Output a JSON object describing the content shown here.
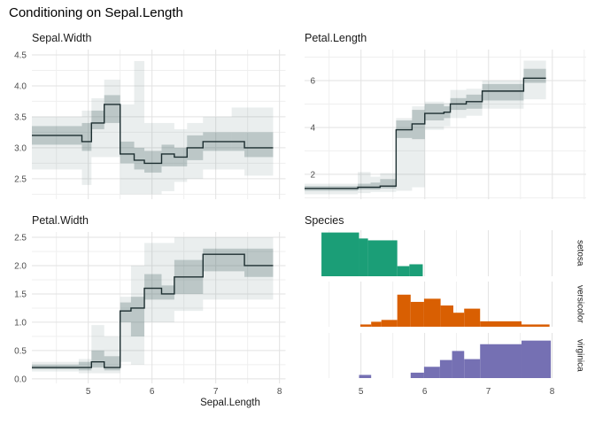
{
  "title": "Conditioning on Sepal.Length",
  "xlabel": "Sepal.Length",
  "colors": {
    "setosa": "#1B9E77",
    "versicolor": "#D95F02",
    "virginica": "#7570B3",
    "step_line": "#1C2E30",
    "band_inner": "rgba(70,100,100,0.28)",
    "band_outer": "rgba(125,148,148,0.16)",
    "grid_major": "#e2e2e2",
    "grid_minor": "#efefef",
    "tick_text": "#4d4d4d"
  },
  "chart_data": [
    {
      "type": "step-band",
      "title": "Sepal.Width",
      "xlim": [
        4.115,
        8.095
      ],
      "ylim": [
        2.17,
        4.585
      ],
      "xticks": [
        5,
        6,
        7,
        8
      ],
      "yticks": [
        2.5,
        3.0,
        3.5,
        4.0,
        4.5
      ],
      "ytick_labels": [
        "2.5",
        "3.0",
        "3.5",
        "4.0",
        "4.5"
      ],
      "segments": [
        {
          "x0": 4.115,
          "x1": 4.9,
          "y": 3.2,
          "inner": [
            3.05,
            3.35
          ],
          "outer": [
            2.65,
            3.5
          ]
        },
        {
          "x0": 4.9,
          "x1": 5.05,
          "y": 3.1,
          "inner": [
            2.95,
            3.4
          ],
          "outer": [
            2.4,
            3.6
          ]
        },
        {
          "x0": 5.05,
          "x1": 5.25,
          "y": 3.4,
          "inner": [
            3.3,
            3.6
          ],
          "outer": [
            2.85,
            3.8
          ]
        },
        {
          "x0": 5.25,
          "x1": 5.5,
          "y": 3.7,
          "inner": [
            3.4,
            3.85
          ],
          "outer": [
            2.85,
            4.1
          ]
        },
        {
          "x0": 5.5,
          "x1": 5.72,
          "y": 2.9,
          "inner": [
            2.75,
            3.1
          ],
          "outer": [
            2.25,
            3.7
          ]
        },
        {
          "x0": 5.72,
          "x1": 5.88,
          "y": 2.8,
          "inner": [
            2.65,
            3.0
          ],
          "outer": [
            2.25,
            4.4
          ]
        },
        {
          "x0": 5.88,
          "x1": 6.15,
          "y": 2.75,
          "inner": [
            2.6,
            2.95
          ],
          "outer": [
            2.25,
            3.4
          ]
        },
        {
          "x0": 6.15,
          "x1": 6.35,
          "y": 2.9,
          "inner": [
            2.7,
            3.05
          ],
          "outer": [
            2.3,
            3.4
          ]
        },
        {
          "x0": 6.35,
          "x1": 6.55,
          "y": 2.85,
          "inner": [
            2.7,
            3.0
          ],
          "outer": [
            2.45,
            3.3
          ]
        },
        {
          "x0": 6.55,
          "x1": 6.8,
          "y": 3.0,
          "inner": [
            2.8,
            3.2
          ],
          "outer": [
            2.5,
            3.4
          ]
        },
        {
          "x0": 6.8,
          "x1": 7.25,
          "y": 3.1,
          "inner": [
            2.95,
            3.25
          ],
          "outer": [
            2.65,
            3.5
          ]
        },
        {
          "x0": 7.25,
          "x1": 7.45,
          "y": 3.1,
          "inner": [
            2.95,
            3.25
          ],
          "outer": [
            2.65,
            3.65
          ]
        },
        {
          "x0": 7.45,
          "x1": 7.9,
          "y": 3.0,
          "inner": [
            2.85,
            3.25
          ],
          "outer": [
            2.55,
            3.65
          ]
        }
      ]
    },
    {
      "type": "step-band",
      "title": "Petal.Length",
      "xlim": [
        4.115,
        8.53
      ],
      "ylim": [
        0.94,
        7.32
      ],
      "xticks": [
        5,
        6,
        7,
        8
      ],
      "yticks": [
        2,
        4,
        6
      ],
      "ytick_labels": [
        "2",
        "4",
        "6"
      ],
      "segments": [
        {
          "x0": 4.115,
          "x1": 4.95,
          "y": 1.4,
          "inner": [
            1.3,
            1.5
          ],
          "outer": [
            1.15,
            1.6
          ]
        },
        {
          "x0": 4.95,
          "x1": 5.15,
          "y": 1.45,
          "inner": [
            1.35,
            1.6
          ],
          "outer": [
            1.2,
            2.1
          ]
        },
        {
          "x0": 5.15,
          "x1": 5.3,
          "y": 1.45,
          "inner": [
            1.35,
            1.65
          ],
          "outer": [
            1.25,
            1.9
          ]
        },
        {
          "x0": 5.3,
          "x1": 5.55,
          "y": 1.5,
          "inner": [
            1.4,
            1.8
          ],
          "outer": [
            1.25,
            2.05
          ]
        },
        {
          "x0": 5.55,
          "x1": 5.8,
          "y": 3.9,
          "inner": [
            3.55,
            4.3
          ],
          "outer": [
            1.3,
            4.4
          ]
        },
        {
          "x0": 5.8,
          "x1": 6.0,
          "y": 4.15,
          "inner": [
            3.5,
            4.75
          ],
          "outer": [
            1.45,
            4.9
          ]
        },
        {
          "x0": 6.0,
          "x1": 6.3,
          "y": 4.6,
          "inner": [
            4.3,
            5.0
          ],
          "outer": [
            3.9,
            5.1
          ]
        },
        {
          "x0": 6.3,
          "x1": 6.4,
          "y": 4.65,
          "inner": [
            4.4,
            4.9
          ],
          "outer": [
            4.05,
            5.05
          ]
        },
        {
          "x0": 6.4,
          "x1": 6.65,
          "y": 5.0,
          "inner": [
            4.75,
            5.25
          ],
          "outer": [
            4.4,
            5.6
          ]
        },
        {
          "x0": 6.65,
          "x1": 6.9,
          "y": 5.1,
          "inner": [
            4.8,
            5.4
          ],
          "outer": [
            4.5,
            5.65
          ]
        },
        {
          "x0": 6.9,
          "x1": 7.55,
          "y": 5.55,
          "inner": [
            5.15,
            5.85
          ],
          "outer": [
            4.8,
            6.0
          ]
        },
        {
          "x0": 7.55,
          "x1": 7.9,
          "y": 6.1,
          "inner": [
            5.9,
            6.5
          ],
          "outer": [
            5.2,
            6.85
          ]
        }
      ]
    },
    {
      "type": "step-band",
      "title": "Petal.Width",
      "xlim": [
        4.115,
        8.095
      ],
      "ylim": [
        -0.08,
        2.594
      ],
      "xticks": [
        5,
        6,
        7,
        8
      ],
      "xtick_labels": [
        "5",
        "6",
        "7",
        "8"
      ],
      "yticks": [
        0,
        0.5,
        1.0,
        1.5,
        2.0,
        2.5
      ],
      "ytick_labels": [
        "0.0",
        "0.5",
        "1.0",
        "1.5",
        "2.0",
        "2.5"
      ],
      "segments": [
        {
          "x0": 4.115,
          "x1": 4.85,
          "y": 0.2,
          "inner": [
            0.17,
            0.25
          ],
          "outer": [
            0.13,
            0.3
          ]
        },
        {
          "x0": 4.85,
          "x1": 5.05,
          "y": 0.2,
          "inner": [
            0.15,
            0.3
          ],
          "outer": [
            0.1,
            0.35
          ]
        },
        {
          "x0": 5.05,
          "x1": 5.25,
          "y": 0.3,
          "inner": [
            0.2,
            0.5
          ],
          "outer": [
            0.1,
            0.95
          ]
        },
        {
          "x0": 5.25,
          "x1": 5.5,
          "y": 0.2,
          "inner": [
            0.15,
            0.4
          ],
          "outer": [
            0.1,
            0.75
          ]
        },
        {
          "x0": 5.5,
          "x1": 5.67,
          "y": 1.2,
          "inner": [
            1.0,
            1.35
          ],
          "outer": [
            0.3,
            1.45
          ]
        },
        {
          "x0": 5.67,
          "x1": 5.88,
          "y": 1.25,
          "inner": [
            0.75,
            1.45
          ],
          "outer": [
            0.25,
            2.0
          ]
        },
        {
          "x0": 5.88,
          "x1": 6.15,
          "y": 1.6,
          "inner": [
            1.4,
            1.85
          ],
          "outer": [
            1.0,
            2.4
          ]
        },
        {
          "x0": 6.15,
          "x1": 6.35,
          "y": 1.5,
          "inner": [
            1.4,
            1.65
          ],
          "outer": [
            1.0,
            2.4
          ]
        },
        {
          "x0": 6.35,
          "x1": 6.8,
          "y": 1.8,
          "inner": [
            1.5,
            2.1
          ],
          "outer": [
            1.2,
            2.5
          ]
        },
        {
          "x0": 6.8,
          "x1": 7.45,
          "y": 2.2,
          "inner": [
            1.9,
            2.3
          ],
          "outer": [
            1.4,
            2.5
          ]
        },
        {
          "x0": 7.45,
          "x1": 7.9,
          "y": 2.0,
          "inner": [
            1.8,
            2.3
          ],
          "outer": [
            1.4,
            2.5
          ]
        }
      ]
    },
    {
      "type": "faceted-histogram",
      "title": "Species",
      "xlim": [
        4.115,
        8.09
      ],
      "xticks": [
        5,
        6,
        7,
        8
      ],
      "xtick_labels": [
        "5",
        "6",
        "7",
        "8"
      ],
      "facets": [
        {
          "label": "setosa",
          "color": "#1B9E77",
          "bins": [
            {
              "x0": 4.38,
              "x1": 4.97,
              "h": 0.95
            },
            {
              "x0": 4.97,
              "x1": 5.11,
              "h": 0.82
            },
            {
              "x0": 5.11,
              "x1": 5.57,
              "h": 0.78
            },
            {
              "x0": 5.57,
              "x1": 5.76,
              "h": 0.22
            },
            {
              "x0": 5.76,
              "x1": 5.97,
              "h": 0.26
            }
          ]
        },
        {
          "label": "versicolor",
          "color": "#D95F02",
          "bins": [
            {
              "x0": 4.99,
              "x1": 5.16,
              "h": 0.05
            },
            {
              "x0": 5.16,
              "x1": 5.32,
              "h": 0.11
            },
            {
              "x0": 5.32,
              "x1": 5.57,
              "h": 0.15
            },
            {
              "x0": 5.57,
              "x1": 5.78,
              "h": 0.71
            },
            {
              "x0": 5.78,
              "x1": 5.99,
              "h": 0.55
            },
            {
              "x0": 5.99,
              "x1": 6.25,
              "h": 0.62
            },
            {
              "x0": 6.25,
              "x1": 6.45,
              "h": 0.47
            },
            {
              "x0": 6.45,
              "x1": 6.62,
              "h": 0.31
            },
            {
              "x0": 6.62,
              "x1": 6.87,
              "h": 0.4
            },
            {
              "x0": 6.87,
              "x1": 7.52,
              "h": 0.12
            },
            {
              "x0": 7.52,
              "x1": 7.96,
              "h": 0.05
            }
          ]
        },
        {
          "label": "virginica",
          "color": "#7570B3",
          "bins": [
            {
              "x0": 4.97,
              "x1": 5.16,
              "h": 0.07
            },
            {
              "x0": 5.78,
              "x1": 5.99,
              "h": 0.12
            },
            {
              "x0": 5.99,
              "x1": 6.24,
              "h": 0.25
            },
            {
              "x0": 6.24,
              "x1": 6.43,
              "h": 0.4
            },
            {
              "x0": 6.43,
              "x1": 6.62,
              "h": 0.6
            },
            {
              "x0": 6.62,
              "x1": 6.87,
              "h": 0.42
            },
            {
              "x0": 6.87,
              "x1": 7.52,
              "h": 0.75
            },
            {
              "x0": 7.52,
              "x1": 7.98,
              "h": 0.83
            }
          ]
        }
      ]
    }
  ]
}
